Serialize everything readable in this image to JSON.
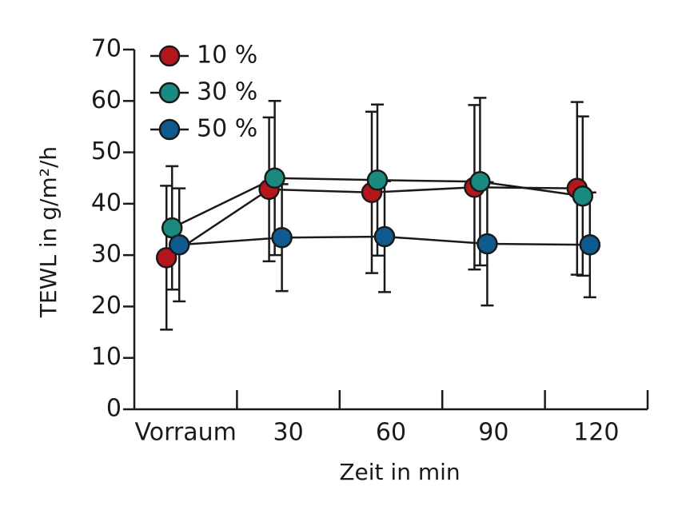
{
  "chart_data": {
    "type": "line",
    "x_label": "Zeit in min",
    "y_label": "TEWL in g/m²/h",
    "categories": [
      "Vorraum",
      "30",
      "60",
      "90",
      "120"
    ],
    "series": [
      {
        "name": "10 %",
        "color": "#b3171b",
        "values": [
          29.5,
          42.8,
          42.2,
          43.2,
          43.0
        ],
        "errors": [
          14,
          14,
          15.7,
          16,
          16.8
        ]
      },
      {
        "name": "30 %",
        "color": "#1a8a80",
        "values": [
          35.3,
          45.0,
          44.6,
          44.3,
          41.5
        ],
        "errors": [
          12,
          15,
          14.7,
          16.3,
          15.5
        ]
      },
      {
        "name": "50 %",
        "color": "#0f5a8f",
        "values": [
          32.0,
          33.4,
          33.6,
          32.2,
          32.0
        ],
        "errors": [
          11,
          10.4,
          10.8,
          12,
          10.2
        ]
      }
    ],
    "ylim": [
      0,
      70
    ],
    "yticks": [
      0,
      10,
      20,
      30,
      40,
      50,
      60,
      70
    ],
    "legend": "upper left",
    "grid": false
  }
}
